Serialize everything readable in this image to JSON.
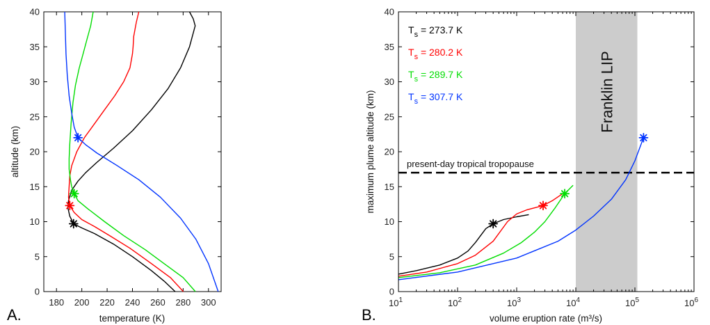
{
  "chart_data": [
    {
      "panel": "A.",
      "type": "line",
      "xlabel": "temperature (K)",
      "ylabel": "altitude (km)",
      "xlim": [
        170,
        310
      ],
      "ylim": [
        0,
        40
      ],
      "xticks": [
        180,
        200,
        220,
        240,
        260,
        280,
        300
      ],
      "yticks": [
        0,
        5,
        10,
        15,
        20,
        25,
        30,
        35,
        40
      ],
      "grid": false,
      "series": [
        {
          "color": "#000000",
          "points": [
            [
              273.7,
              0
            ],
            [
              265,
              1.5
            ],
            [
              255,
              3
            ],
            [
              240,
              5
            ],
            [
              225,
              6.8
            ],
            [
              210,
              8.3
            ],
            [
              200,
              9.1
            ],
            [
              193.5,
              9.7
            ],
            [
              190.5,
              10.8
            ],
            [
              189,
              12
            ],
            [
              189.5,
              13
            ],
            [
              192,
              14.5
            ],
            [
              197,
              15.8
            ],
            [
              203,
              17
            ],
            [
              212,
              18.5
            ],
            [
              225,
              20.5
            ],
            [
              240,
              23
            ],
            [
              255,
              26
            ],
            [
              268,
              29
            ],
            [
              278,
              32
            ],
            [
              285,
              35
            ],
            [
              288.5,
              37.3
            ],
            [
              289.5,
              38
            ],
            [
              288,
              39
            ],
            [
              285,
              40
            ]
          ],
          "marker": [
            193.5,
            9.7
          ]
        },
        {
          "color": "#ff0000",
          "points": [
            [
              280.2,
              0
            ],
            [
              270,
              2
            ],
            [
              255,
              4
            ],
            [
              238,
              6.2
            ],
            [
              222,
              8
            ],
            [
              210,
              9.3
            ],
            [
              200,
              10.3
            ],
            [
              194,
              11.3
            ],
            [
              190.5,
              12.3
            ],
            [
              189.5,
              13.5
            ],
            [
              190,
              15
            ],
            [
              190.5,
              16.5
            ],
            [
              192,
              18
            ],
            [
              196,
              20
            ],
            [
              202,
              22
            ],
            [
              210,
              24
            ],
            [
              218,
              26
            ],
            [
              226,
              28
            ],
            [
              233,
              30
            ],
            [
              238,
              32
            ],
            [
              240,
              34
            ],
            [
              240.5,
              35
            ],
            [
              241,
              36.5
            ],
            [
              243,
              38.5
            ],
            [
              245,
              40
            ]
          ],
          "marker": [
            190.5,
            12.3
          ]
        },
        {
          "color": "#00dd00",
          "points": [
            [
              289.7,
              0
            ],
            [
              280,
              2
            ],
            [
              265,
              4
            ],
            [
              250,
              6
            ],
            [
              233,
              8
            ],
            [
              218,
              10
            ],
            [
              205,
              11.8
            ],
            [
              197,
              13
            ],
            [
              194,
              14
            ],
            [
              192,
              15
            ],
            [
              191,
              16
            ],
            [
              190,
              17.5
            ],
            [
              190,
              19
            ],
            [
              190.5,
              21
            ],
            [
              191.5,
              24
            ],
            [
              193,
              27
            ],
            [
              195,
              29.5
            ],
            [
              198,
              32
            ],
            [
              201,
              34
            ],
            [
              204,
              36
            ],
            [
              207,
              38
            ],
            [
              208.5,
              39.5
            ],
            [
              209,
              40
            ]
          ],
          "marker": [
            194,
            14
          ]
        },
        {
          "color": "#0033ff",
          "points": [
            [
              307.7,
              0
            ],
            [
              300,
              4
            ],
            [
              290,
              7.5
            ],
            [
              278,
              10.5
            ],
            [
              262,
              13.5
            ],
            [
              245,
              16
            ],
            [
              228,
              18
            ],
            [
              212,
              19.8
            ],
            [
              203,
              21
            ],
            [
              197,
              22
            ],
            [
              194,
              23.5
            ],
            [
              192,
              25.5
            ],
            [
              190,
              28
            ],
            [
              188.5,
              31
            ],
            [
              187.5,
              34
            ],
            [
              187,
              37
            ],
            [
              186.5,
              40
            ]
          ],
          "marker": [
            197,
            22
          ]
        }
      ]
    },
    {
      "panel": "B.",
      "type": "line",
      "xlabel": "volume eruption rate (m³/s)",
      "ylabel": "maximum plume altitude (km)",
      "xscale": "log",
      "xlim": [
        10,
        1000000
      ],
      "ylim": [
        0,
        40
      ],
      "xtick_values": [
        10,
        100,
        1000,
        10000,
        100000,
        1000000
      ],
      "xtick_labels": [
        {
          "base": "10",
          "exp": "1"
        },
        {
          "base": "10",
          "exp": "2"
        },
        {
          "base": "10",
          "exp": "3"
        },
        {
          "base": "10",
          "exp": "4"
        },
        {
          "base": "10",
          "exp": "5"
        },
        {
          "base": "10",
          "exp": "6"
        }
      ],
      "yticks": [
        0,
        5,
        10,
        15,
        20,
        25,
        30,
        35,
        40
      ],
      "grid": false,
      "legend_position": "top-left",
      "legend": [
        {
          "prefix": "T",
          "sub": "s",
          "value": " = 273.7 K",
          "color": "#000000"
        },
        {
          "prefix": "T",
          "sub": "s",
          "value": " = 280.2 K",
          "color": "#ff0000"
        },
        {
          "prefix": "T",
          "sub": "s",
          "value": " = 289.7 K",
          "color": "#00dd00"
        },
        {
          "prefix": "T",
          "sub": "s",
          "value": " = 307.7 K",
          "color": "#0033ff"
        }
      ],
      "shaded_region": {
        "x": [
          10000,
          110000
        ],
        "label": "Franklin LIP",
        "color": "#cccccc"
      },
      "hline": {
        "y": 17,
        "label": "present-day tropical tropopause"
      },
      "series": [
        {
          "color": "#000000",
          "points": [
            [
              10,
              2.5
            ],
            [
              20,
              3
            ],
            [
              50,
              3.8
            ],
            [
              100,
              4.8
            ],
            [
              150,
              5.8
            ],
            [
              200,
              7
            ],
            [
              300,
              9
            ],
            [
              400,
              9.7
            ],
            [
              600,
              10.3
            ],
            [
              1000,
              10.7
            ],
            [
              1600,
              11
            ]
          ],
          "marker": [
            400,
            9.7
          ]
        },
        {
          "color": "#ff0000",
          "points": [
            [
              10,
              2.2
            ],
            [
              30,
              2.8
            ],
            [
              100,
              4
            ],
            [
              200,
              5.2
            ],
            [
              400,
              7.2
            ],
            [
              700,
              10
            ],
            [
              1000,
              11.1
            ],
            [
              1500,
              11.7
            ],
            [
              2800,
              12.3
            ],
            [
              4000,
              13
            ],
            [
              6000,
              14
            ]
          ],
          "marker": [
            2800,
            12.3
          ]
        },
        {
          "color": "#00dd00",
          "points": [
            [
              10,
              2
            ],
            [
              50,
              2.7
            ],
            [
              200,
              3.8
            ],
            [
              600,
              5.5
            ],
            [
              1200,
              7
            ],
            [
              2000,
              8.5
            ],
            [
              3000,
              10
            ],
            [
              4500,
              12
            ],
            [
              6500,
              14
            ],
            [
              9000,
              15.2
            ]
          ],
          "marker": [
            6500,
            14
          ]
        },
        {
          "color": "#0033ff",
          "points": [
            [
              10,
              1.7
            ],
            [
              100,
              2.8
            ],
            [
              1000,
              4.8
            ],
            [
              5000,
              7.2
            ],
            [
              10000,
              8.8
            ],
            [
              20000,
              10.8
            ],
            [
              40000,
              13.2
            ],
            [
              70000,
              16
            ],
            [
              100000,
              18.7
            ],
            [
              140000,
              22
            ]
          ],
          "marker": [
            140000,
            22
          ]
        }
      ]
    }
  ]
}
